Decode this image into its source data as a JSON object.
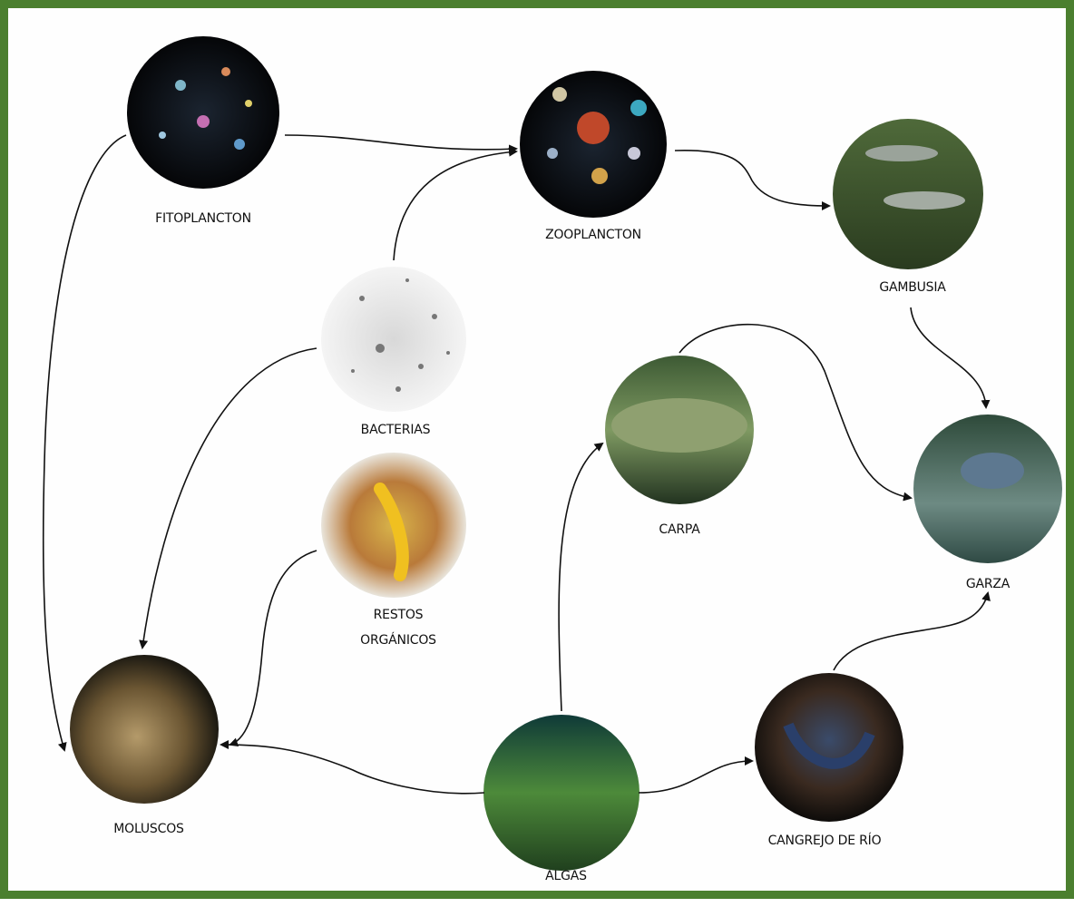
{
  "nodes": [
    {
      "label": "FITOPLANCTON"
    },
    {
      "label": "ZOOPLANCTON"
    },
    {
      "label": "GAMBUSIA"
    },
    {
      "label": "BACTERIAS"
    },
    {
      "label": "CARPA"
    },
    {
      "label": "GARZA"
    },
    {
      "label": "RESTOS ORGÁNICOS"
    },
    {
      "label": "MOLUSCOS"
    },
    {
      "label": "ALGAS"
    },
    {
      "label": "CANGREJO DE RÍO"
    }
  ]
}
